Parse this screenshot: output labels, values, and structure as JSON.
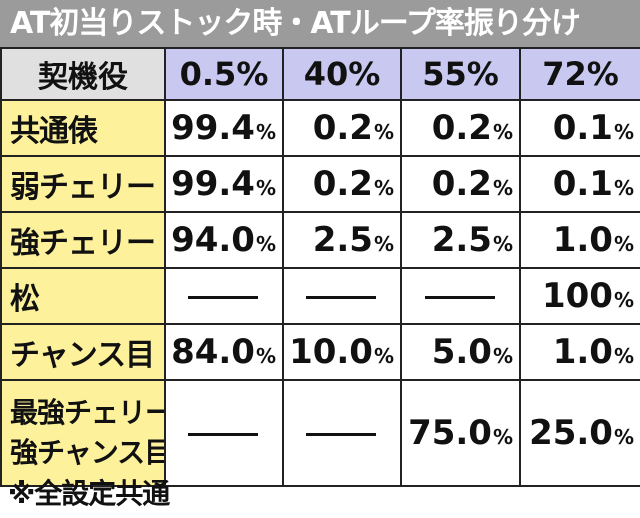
{
  "title": "AT初当りストック時・ATループ率振り分け",
  "header": {
    "corner": "契機役",
    "columns": [
      "0.5%",
      "40%",
      "55%",
      "72%"
    ]
  },
  "rows": [
    {
      "label": "共通俵",
      "values": [
        {
          "num": "99.4",
          "pct": "%"
        },
        {
          "num": "0.2",
          "pct": "%"
        },
        {
          "num": "0.2",
          "pct": "%"
        },
        {
          "num": "0.1",
          "pct": "%"
        }
      ]
    },
    {
      "label": "弱チェリー",
      "values": [
        {
          "num": "99.4",
          "pct": "%"
        },
        {
          "num": "0.2",
          "pct": "%"
        },
        {
          "num": "0.2",
          "pct": "%"
        },
        {
          "num": "0.1",
          "pct": "%"
        }
      ]
    },
    {
      "label": "強チェリー",
      "values": [
        {
          "num": "94.0",
          "pct": "%"
        },
        {
          "num": "2.5",
          "pct": "%"
        },
        {
          "num": "2.5",
          "pct": "%"
        },
        {
          "num": "1.0",
          "pct": "%"
        }
      ]
    },
    {
      "label": "松",
      "values": [
        {
          "dash": true
        },
        {
          "dash": true
        },
        {
          "dash": true
        },
        {
          "num": "100",
          "pct": "%"
        }
      ]
    },
    {
      "label": "チャンス目",
      "values": [
        {
          "num": "84.0",
          "pct": "%"
        },
        {
          "num": "10.0",
          "pct": "%"
        },
        {
          "num": "5.0",
          "pct": "%"
        },
        {
          "num": "1.0",
          "pct": "%"
        }
      ]
    },
    {
      "label_lines": [
        "最強チェリー",
        "強チャンス目"
      ],
      "values": [
        {
          "dash": true
        },
        {
          "dash": true
        },
        {
          "num": "75.0",
          "pct": "%"
        },
        {
          "num": "25.0",
          "pct": "%"
        }
      ]
    }
  ],
  "note": "※全設定共通"
}
